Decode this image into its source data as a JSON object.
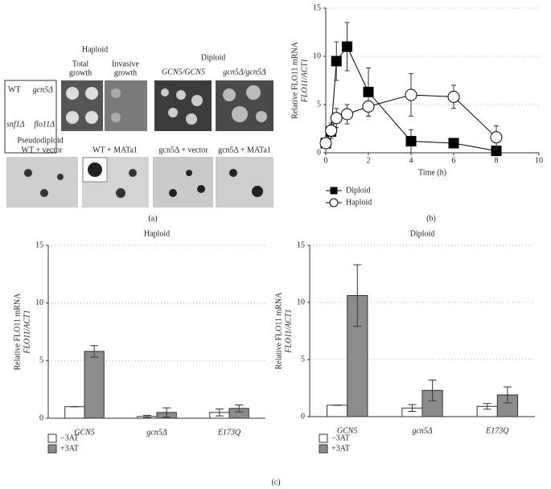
{
  "panel_a": {
    "haploid_title": "Haploid",
    "total_growth": [
      "Total",
      "growth"
    ],
    "invasive_growth": [
      "Invasive",
      "growth"
    ],
    "diploid_title": "Diploid",
    "diploid_labels": [
      "GCN5/GCN5",
      "gcn5Δ/gcn5Δ"
    ],
    "strain_labels": [
      "WT",
      "gcn5Δ",
      "snf1Δ",
      "flo11Δ"
    ],
    "pseudodiploid_title": "Pseudodiploid",
    "pseudodiploid_labels": [
      "WT + vector",
      "WT + MATa1",
      "gcn5Δ + vector",
      "gcn5Δ + MATa1"
    ]
  },
  "panel_labels": [
    "(a)",
    "(b)",
    "(c)"
  ],
  "chart_data": [
    {
      "type": "line",
      "xlabel": "Time (h)",
      "ylabel": [
        "Relative FLO11 mRNA",
        "FLO11/ACT1"
      ],
      "xlim": [
        0,
        10
      ],
      "xticks": [
        0,
        2,
        4,
        6,
        8,
        10
      ],
      "ylim": [
        0,
        15
      ],
      "yticks": [
        0,
        5,
        10,
        15
      ],
      "grid": true,
      "series": [
        {
          "name": "Diploid",
          "marker": "square",
          "color": "#000000",
          "x": [
            0,
            0.25,
            0.5,
            1,
            2,
            4,
            6,
            8
          ],
          "values": [
            1,
            2.2,
            9.5,
            11,
            6.3,
            1.2,
            1.0,
            0.2
          ],
          "errors": [
            0.5,
            0.7,
            2,
            2.5,
            2.5,
            1.2,
            0.3,
            0.3
          ]
        },
        {
          "name": "Haploid",
          "marker": "circle",
          "color": "#ffffff",
          "x": [
            0,
            0.25,
            0.5,
            1,
            2,
            4,
            6,
            8
          ],
          "values": [
            1,
            2.3,
            3.6,
            4,
            4.8,
            6,
            5.8,
            1.6
          ],
          "errors": [
            0.5,
            0.8,
            1,
            1,
            1,
            2.2,
            1.2,
            1.2
          ]
        }
      ]
    },
    {
      "type": "bar",
      "title": "Haploid",
      "ylabel": [
        "Relative FLO11 mRNA",
        "FLO11/ACT1"
      ],
      "categories": [
        "GCN5",
        "gcn5Δ",
        "E173Q"
      ],
      "ylim": [
        0,
        15
      ],
      "yticks": [
        0,
        5,
        10,
        15
      ],
      "grid": true,
      "series": [
        {
          "name": "−3AT",
          "color": "#ffffff",
          "values": [
            1.0,
            0.15,
            0.5
          ],
          "errors": [
            0,
            0.1,
            0.3
          ]
        },
        {
          "name": "+3AT",
          "color": "#8c8c8c",
          "values": [
            5.8,
            0.5,
            0.85
          ],
          "errors": [
            0.5,
            0.4,
            0.3
          ]
        }
      ]
    },
    {
      "type": "bar",
      "title": "Diploid",
      "ylabel": [
        "Relative FLO11 mRNA",
        "FLO11/ACT1"
      ],
      "categories": [
        "GCN5",
        "gcn5Δ",
        "E173Q"
      ],
      "ylim": [
        0,
        15
      ],
      "yticks": [
        0,
        5,
        10,
        15
      ],
      "grid": true,
      "series": [
        {
          "name": "−3AT",
          "color": "#ffffff",
          "values": [
            1.0,
            0.75,
            0.9
          ],
          "errors": [
            0,
            0.3,
            0.25
          ]
        },
        {
          "name": "+3AT",
          "color": "#8c8c8c",
          "values": [
            10.6,
            2.3,
            1.9
          ],
          "errors": [
            2.7,
            0.9,
            0.7
          ]
        }
      ]
    }
  ]
}
